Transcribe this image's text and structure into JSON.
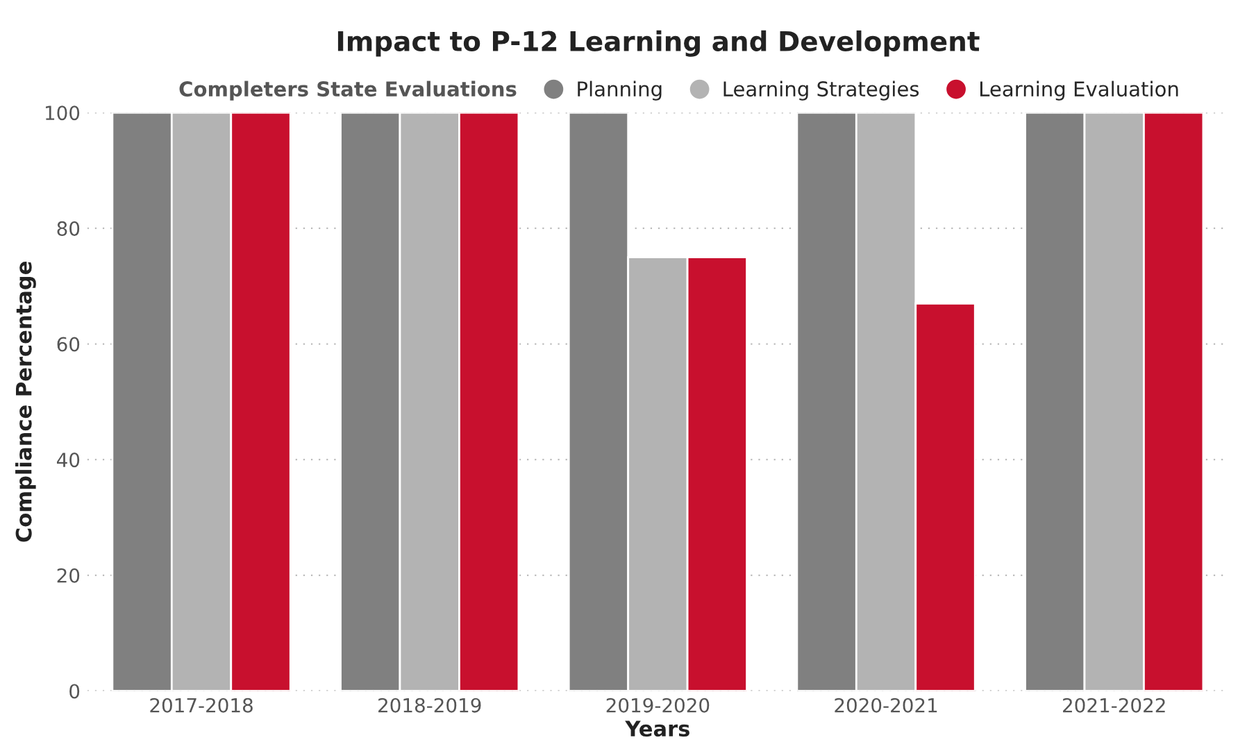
{
  "chart_data": {
    "type": "bar",
    "title": "Impact to P-12 Learning and Development",
    "xlabel": "Years",
    "ylabel": "Compliance Percentage",
    "legend_title": "Completers State Evaluations",
    "categories": [
      "2017-2018",
      "2018-2019",
      "2019-2020",
      "2020-2021",
      "2021-2022"
    ],
    "series": [
      {
        "name": "Planning",
        "color": "#808080",
        "values": [
          100,
          100,
          100,
          100,
          100
        ]
      },
      {
        "name": "Learning Strategies",
        "color": "#b3b3b3",
        "values": [
          100,
          100,
          75,
          100,
          100
        ]
      },
      {
        "name": "Learning Evaluation",
        "color": "#c8102e",
        "values": [
          100,
          100,
          75,
          67,
          100
        ]
      }
    ],
    "ylim": [
      0,
      100
    ],
    "yticks": [
      0,
      20,
      40,
      60,
      80,
      100
    ],
    "grid": "y",
    "legend": "top"
  }
}
